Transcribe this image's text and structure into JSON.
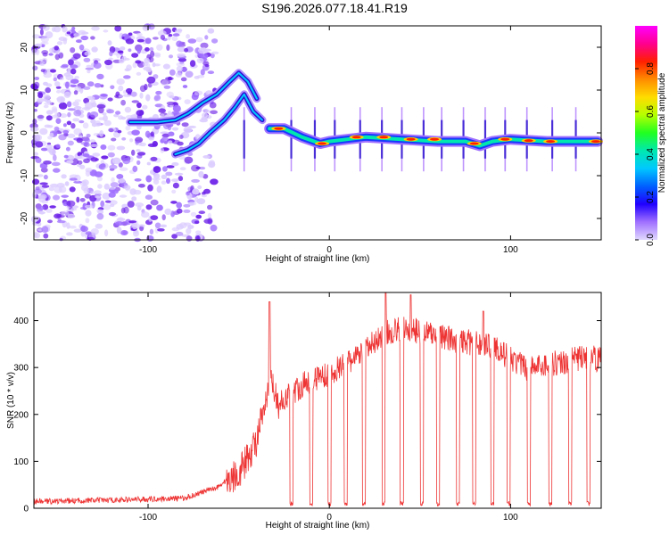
{
  "title": "S196.2026.077.18.41.R19",
  "colors": {
    "plot_frame": "#000000",
    "snr_line": "#ee3333",
    "noise": "#8a3ffc",
    "colorbar_stops": [
      "#ff00ff",
      "#ff0090",
      "#ff2000",
      "#ff8c00",
      "#ffdc00",
      "#b4ff00",
      "#20ff20",
      "#00e8b0",
      "#00c8ff",
      "#0060ff",
      "#2000ff",
      "#a070ff",
      "#e0d8ff"
    ]
  },
  "chart_data": [
    {
      "id": "spectrogram",
      "type": "heatmap",
      "xlabel": "Height of straight line (km)",
      "ylabel": "Frequency (Hz)",
      "xlim": [
        -163,
        150
      ],
      "ylim": [
        -25,
        25
      ],
      "xticks": [
        -100,
        0,
        100
      ],
      "yticks": [
        -20,
        -10,
        0,
        10,
        20
      ],
      "xtick_labels": [
        "-100",
        "0",
        "100"
      ],
      "ytick_labels": [
        "-20",
        "-10",
        "0",
        "10",
        "20"
      ],
      "ridge": {
        "upper_branch": [
          [
            -110,
            2.5
          ],
          [
            -95,
            2.5
          ],
          [
            -85,
            3
          ],
          [
            -78,
            4.5
          ],
          [
            -70,
            7
          ],
          [
            -62,
            9
          ],
          [
            -55,
            12
          ],
          [
            -50,
            14
          ],
          [
            -45,
            12
          ],
          [
            -40,
            8
          ]
        ],
        "lower_branch": [
          [
            -85,
            -5
          ],
          [
            -78,
            -4
          ],
          [
            -72,
            -2.5
          ],
          [
            -66,
            0
          ],
          [
            -58,
            3
          ],
          [
            -52,
            6
          ],
          [
            -47,
            9
          ],
          [
            -42,
            5
          ],
          [
            -37,
            3
          ]
        ],
        "main_line": [
          [
            -33,
            1
          ],
          [
            -25,
            1
          ],
          [
            -15,
            -1
          ],
          [
            -5,
            -2.5
          ],
          [
            0,
            -2
          ],
          [
            10,
            -1.5
          ],
          [
            20,
            -1
          ],
          [
            40,
            -1.5
          ],
          [
            60,
            -2
          ],
          [
            75,
            -2
          ],
          [
            83,
            -3
          ],
          [
            90,
            -2
          ],
          [
            100,
            -1.5
          ],
          [
            120,
            -2
          ],
          [
            148,
            -2
          ]
        ]
      },
      "spikes_x": [
        -47,
        -21,
        -8,
        3,
        17,
        29,
        40,
        52,
        62,
        74,
        86,
        97,
        109,
        123,
        136
      ],
      "colorbar": {
        "label": "Normalized spectral amplitude",
        "range": [
          0.0,
          1.0
        ],
        "ticks": [
          0.0,
          0.2,
          0.4,
          0.6,
          0.8
        ],
        "tick_labels": [
          "0.0",
          "0.2",
          "0.4",
          "0.6",
          "0.8"
        ]
      }
    },
    {
      "id": "snr",
      "type": "line",
      "xlabel": "Height of straight line (km)",
      "ylabel": "SNR (10 * v/v)",
      "xlim": [
        -163,
        150
      ],
      "ylim": [
        0,
        460
      ],
      "xticks": [
        -100,
        0,
        100
      ],
      "yticks": [
        0,
        100,
        200,
        300,
        400
      ],
      "xtick_labels": [
        "-100",
        "0",
        "100"
      ],
      "ytick_labels": [
        "0",
        "100",
        "200",
        "300",
        "400"
      ],
      "series": [
        {
          "name": "SNR",
          "envelope": [
            [
              -163,
              15
            ],
            [
              -120,
              18
            ],
            [
              -100,
              20
            ],
            [
              -80,
              22
            ],
            [
              -70,
              35
            ],
            [
              -62,
              45
            ],
            [
              -55,
              65
            ],
            [
              -50,
              80
            ],
            [
              -45,
              110
            ],
            [
              -40,
              150
            ],
            [
              -36,
              210
            ],
            [
              -32,
              280
            ],
            [
              -28,
              220
            ],
            [
              -24,
              240
            ],
            [
              -20,
              250
            ],
            [
              -15,
              265
            ],
            [
              -10,
              275
            ],
            [
              -5,
              285
            ],
            [
              0,
              290
            ],
            [
              10,
              310
            ],
            [
              20,
              340
            ],
            [
              30,
              375
            ],
            [
              40,
              385
            ],
            [
              50,
              380
            ],
            [
              60,
              370
            ],
            [
              70,
              360
            ],
            [
              80,
              355
            ],
            [
              90,
              350
            ],
            [
              100,
              320
            ],
            [
              110,
              300
            ],
            [
              120,
              310
            ],
            [
              130,
              315
            ],
            [
              140,
              325
            ],
            [
              150,
              320
            ]
          ],
          "peaks": [
            [
              -33,
              440
            ],
            [
              31,
              460
            ],
            [
              45,
              455
            ],
            [
              85,
              420
            ]
          ],
          "dropouts_x": [
            -21,
            -10,
            0,
            9,
            19,
            30,
            40,
            51,
            60,
            71,
            80,
            90,
            99,
            110,
            122,
            133,
            143
          ]
        }
      ]
    }
  ]
}
